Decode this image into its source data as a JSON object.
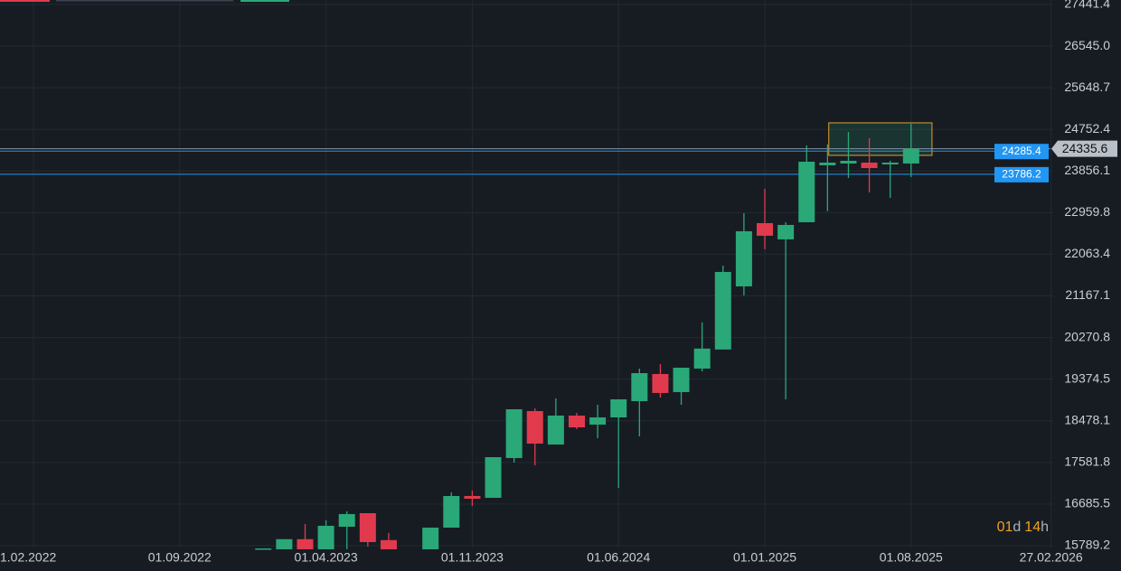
{
  "chart_data": {
    "type": "candlestick",
    "xlim": [
      -1.6,
      48.8
    ],
    "ylim": [
      15244,
      27538
    ],
    "xticks": [
      {
        "value": 0,
        "label": "1.02.2022"
      },
      {
        "value": 7,
        "label": "01.09.2022"
      },
      {
        "value": 14,
        "label": "01.04.2023"
      },
      {
        "value": 21,
        "label": "01.11.2023"
      },
      {
        "value": 28,
        "label": "01.06.2024"
      },
      {
        "value": 35,
        "label": "01.01.2025"
      },
      {
        "value": 42,
        "label": "01.08.2025"
      },
      {
        "value": 48.7,
        "label": "27.02.2026"
      }
    ],
    "yticks": [
      27441.4,
      {
        "value": 26545,
        "label": "26545.0"
      },
      25648.7,
      24752.4,
      23856.1,
      22959.8,
      22063.4,
      21167.1,
      20270.8,
      19374.5,
      18478.1,
      17581.8,
      16685.5,
      15789.2
    ],
    "grid": true,
    "up_color": "#2aa877",
    "down_color": "#e23a4d",
    "candles": {
      "x": [
        11,
        12,
        13,
        14,
        15,
        16,
        17,
        19,
        20,
        21,
        22,
        23,
        24,
        25,
        26,
        27,
        28,
        29,
        30,
        31,
        32,
        33,
        34,
        35,
        36,
        37,
        38,
        39,
        40,
        41,
        42
      ],
      "open": [
        15711,
        15711,
        15929,
        15711,
        16197,
        16489,
        15909,
        15711,
        16178,
        16859,
        16820,
        17676,
        18687,
        17967,
        18590,
        18396,
        18551,
        18901,
        19485,
        19096,
        19602,
        20013,
        21372,
        22734,
        22384,
        22753,
        23979,
        24017,
        24037,
        23998,
        24017
      ],
      "high": [
        15730,
        15929,
        16256,
        16334,
        16528,
        16489,
        16063,
        16178,
        16937,
        16976,
        17695,
        18726,
        18746,
        18960,
        18649,
        18823,
        18940,
        19602,
        19699,
        19621,
        20597,
        21820,
        22948,
        23473,
        22753,
        24407,
        24426,
        24698,
        24562,
        24076,
        24873
      ],
      "low": [
        15711,
        15711,
        15711,
        15711,
        15711,
        15770,
        15711,
        15711,
        16178,
        16645,
        16820,
        17579,
        17520,
        17967,
        18298,
        18104,
        17034,
        18143,
        18979,
        18823,
        19543,
        20013,
        21178,
        22170,
        18940,
        22753,
        22992,
        23706,
        23395,
        23278,
        23726
      ],
      "close": [
        15730,
        15929,
        15711,
        16217,
        16470,
        15867,
        15711,
        16178,
        16859,
        16800,
        17695,
        18726,
        17987,
        18590,
        18337,
        18551,
        18940,
        19504,
        19077,
        19621,
        20033,
        21683,
        22559,
        22462,
        22695,
        24056,
        24037,
        24076,
        23920,
        24037,
        24335.6
      ]
    },
    "last_price": 24335.6,
    "price_lines": [
      {
        "value": 24285.4,
        "color": "#2196f3"
      },
      {
        "value": 23786.2,
        "color": "#2196f3"
      }
    ],
    "box": {
      "x": [
        38.06,
        43.0
      ],
      "y": [
        24893,
        24193
      ],
      "color": "#e0a030"
    },
    "countdown": [
      "01",
      "d",
      "14",
      "h"
    ]
  }
}
